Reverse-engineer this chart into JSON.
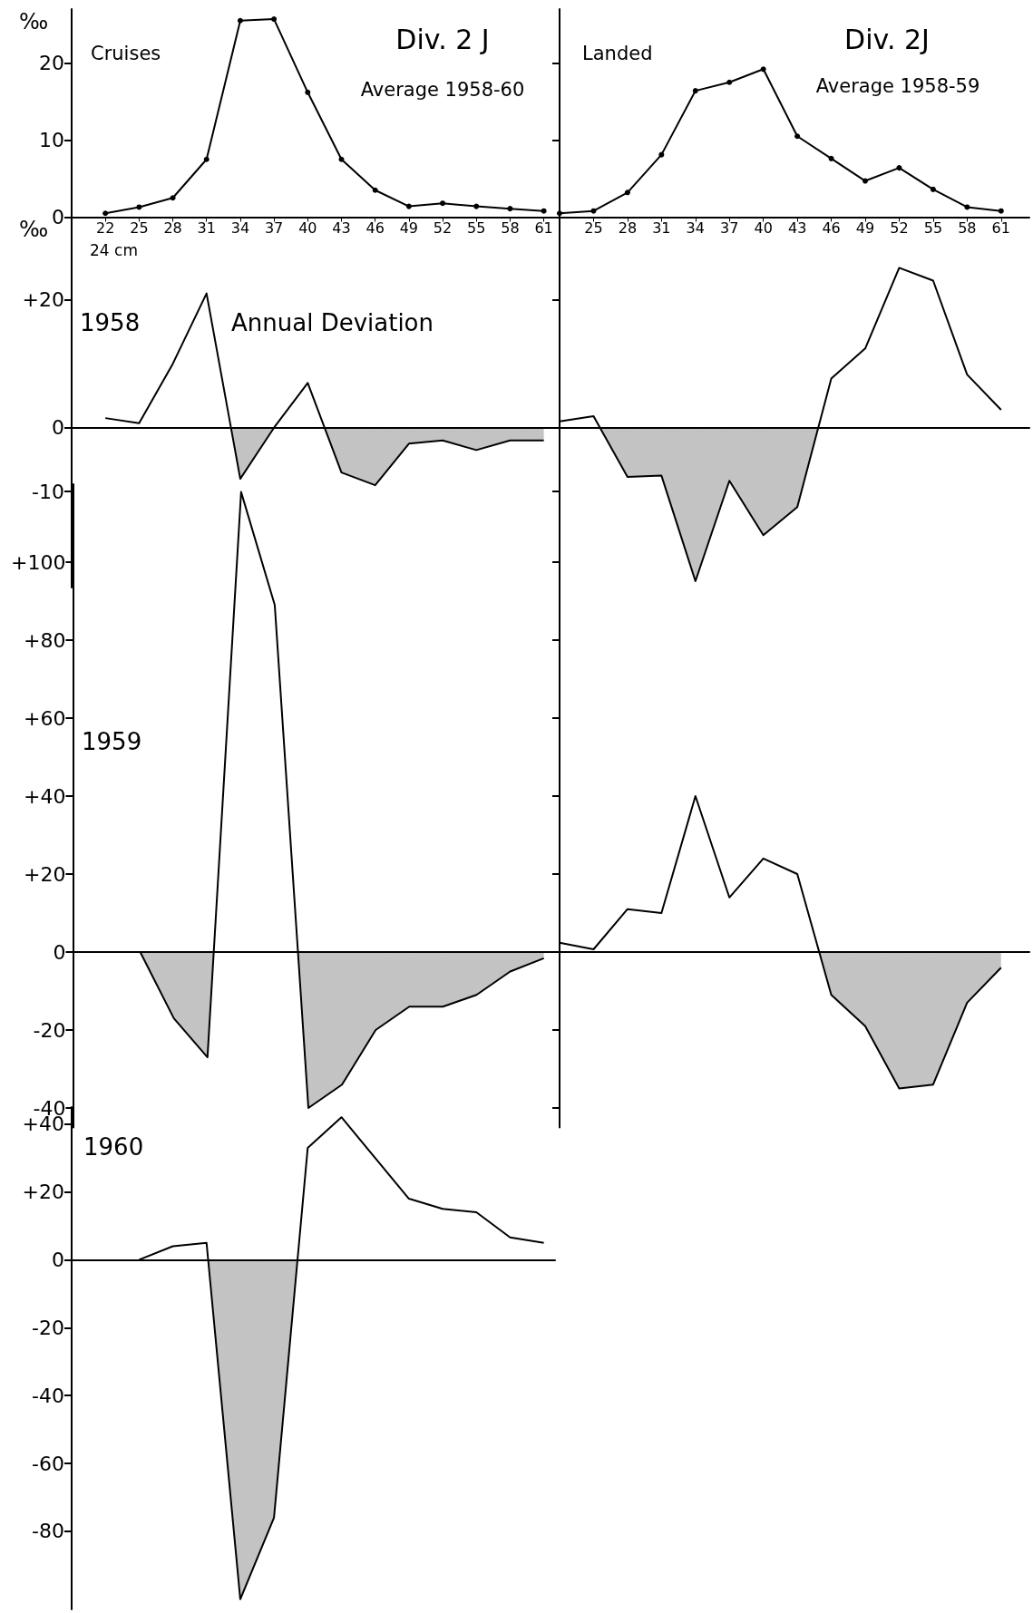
{
  "chart_data": [
    {
      "type": "line",
      "title": "Div. 2 J",
      "subtitle": "Average 1958-60",
      "ylabel": "‰",
      "xlabel": "24 cm",
      "annotations": [
        "Cruises"
      ],
      "marker": "circle",
      "xlim": [
        19,
        62
      ],
      "xticks": [
        22,
        25,
        28,
        31,
        34,
        37,
        40,
        43,
        46,
        49,
        52,
        55,
        58,
        61
      ],
      "ylim": [
        0,
        27
      ],
      "yticks": [
        0,
        10,
        20
      ],
      "x": [
        22,
        25,
        28,
        31,
        34,
        37,
        40,
        43,
        46,
        49,
        52,
        55,
        58,
        61
      ],
      "series": [
        {
          "color": "#000000",
          "values": [
            0.5,
            1.3,
            2.5,
            7.5,
            25.5,
            25.7,
            16.2,
            7.5,
            3.5,
            1.4,
            1.8,
            1.4,
            1.1,
            0.8
          ]
        }
      ]
    },
    {
      "type": "line",
      "title": "Div. 2J",
      "subtitle": "Average 1958-59",
      "annotations": [
        "Landed"
      ],
      "marker": "circle",
      "tick_labels": "x",
      "xlim": [
        22,
        63.5
      ],
      "xticks": [
        25,
        28,
        31,
        34,
        37,
        40,
        43,
        46,
        49,
        52,
        55,
        58,
        61
      ],
      "ylim": [
        0,
        27
      ],
      "yticks": [
        0,
        10,
        20
      ],
      "x": [
        22,
        25,
        28,
        31,
        34,
        37,
        40,
        43,
        46,
        49,
        52,
        55,
        58,
        61
      ],
      "series": [
        {
          "color": "#000000",
          "values": [
            0.5,
            0.8,
            3.2,
            8.1,
            16.4,
            17.5,
            19.2,
            10.5,
            7.6,
            4.7,
            6.4,
            3.6,
            1.3,
            0.8
          ]
        }
      ]
    },
    {
      "type": "area",
      "ylabel": "‰",
      "annotations": [
        "1958",
        "Annual Deviation"
      ],
      "tick_labels": "y",
      "xlim": [
        19,
        62
      ],
      "ylim": [
        -25,
        33
      ],
      "yticks": [
        -10,
        0,
        {
          "value": 20,
          "label": "+20"
        }
      ],
      "x": [
        22,
        25,
        28,
        31,
        34,
        37,
        40,
        43,
        46,
        49,
        52,
        55,
        58,
        61
      ],
      "series": [
        {
          "color": "#000000",
          "values": [
            1.5,
            0.7,
            10,
            21,
            -8,
            0,
            7,
            -7,
            -9,
            -2.5,
            -2,
            -3.5,
            -2,
            -2
          ]
        }
      ]
    },
    {
      "type": "area",
      "tick_labels": false,
      "xlim": [
        22,
        63.5
      ],
      "ylim": [
        -25,
        33
      ],
      "yticks": [
        -10,
        0,
        20
      ],
      "x": [
        22,
        25,
        28,
        31,
        34,
        37,
        40,
        43,
        46,
        49,
        52,
        55,
        58,
        61
      ],
      "series": [
        {
          "color": "#000000",
          "values": [
            1,
            1.8,
            -7.7,
            -7.5,
            -24,
            -8.3,
            -16.8,
            -12.4,
            7.7,
            12.4,
            25,
            23,
            8.3,
            2.8
          ]
        }
      ]
    },
    {
      "type": "area",
      "annotations": [
        "1959"
      ],
      "tick_labels": "y",
      "xlim": [
        19,
        62
      ],
      "ylim": [
        -45,
        120
      ],
      "yticks": [
        -40,
        -20,
        0,
        {
          "value": 20,
          "label": "+20"
        },
        {
          "value": 40,
          "label": "+40"
        },
        {
          "value": 60,
          "label": "+60"
        },
        {
          "value": 80,
          "label": "+80"
        },
        {
          "value": 100,
          "label": "+100"
        }
      ],
      "x": [
        22,
        25,
        28,
        31,
        34,
        37,
        40,
        43,
        46,
        49,
        52,
        55,
        58,
        61
      ],
      "series": [
        {
          "color": "#000000",
          "values": [
            0,
            0,
            -17,
            -27,
            118,
            89,
            -40,
            -34,
            -20,
            -14,
            -14,
            -11,
            -5,
            -1.6
          ]
        }
      ]
    },
    {
      "type": "area",
      "tick_labels": false,
      "xlim": [
        22,
        63.5
      ],
      "ylim": [
        -45,
        120
      ],
      "yticks": [
        -40,
        -20,
        0,
        20,
        40,
        60,
        80,
        100
      ],
      "x": [
        22,
        25,
        28,
        31,
        34,
        37,
        40,
        43,
        46,
        49,
        52,
        55,
        58,
        61
      ],
      "series": [
        {
          "color": "#000000",
          "values": [
            2.4,
            0.7,
            11,
            10,
            40,
            14,
            24,
            20,
            -11,
            -19,
            -35,
            -34,
            -13,
            -4
          ]
        }
      ]
    },
    {
      "type": "area",
      "annotations": [
        "1960"
      ],
      "tick_labels": "y",
      "xlim": [
        19,
        62
      ],
      "ylim": [
        -103,
        45
      ],
      "yticks": [
        -80,
        -60,
        -40,
        -20,
        0,
        {
          "value": 20,
          "label": "+20"
        },
        {
          "value": 40,
          "label": "+40"
        }
      ],
      "x": [
        25,
        28,
        31,
        34,
        37,
        40,
        43,
        46,
        49,
        52,
        55,
        58,
        61
      ],
      "series": [
        {
          "color": "#000000",
          "values": [
            0,
            4,
            5,
            -100,
            -76,
            33,
            42,
            30,
            18,
            15,
            14,
            6.6,
            5
          ]
        }
      ]
    }
  ]
}
